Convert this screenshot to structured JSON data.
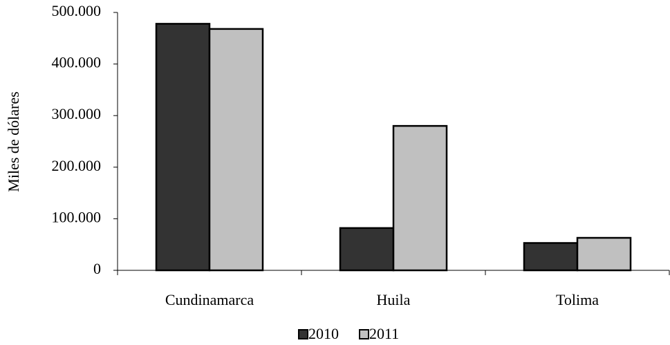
{
  "chart_data": {
    "type": "bar",
    "y_label": "Miles de dólares",
    "categories": [
      "Cundinamarca",
      "Huila",
      "Tolima"
    ],
    "series": [
      {
        "name": "2010",
        "color": "#333333",
        "values": [
          478000,
          82000,
          53000
        ]
      },
      {
        "name": "2011",
        "color": "#c0c0c0",
        "values": [
          468000,
          280000,
          63000
        ]
      }
    ],
    "ylim": [
      0,
      500000
    ],
    "yticks": [
      0,
      {
        "value": 100000,
        "label": "100.000"
      },
      {
        "value": 200000,
        "label": "200.000"
      },
      {
        "value": 300000,
        "label": "300.000"
      },
      {
        "value": 400000,
        "label": "400.000"
      },
      {
        "value": 500000,
        "label": "500.000"
      }
    ],
    "grid": false,
    "legend": "bottom"
  }
}
